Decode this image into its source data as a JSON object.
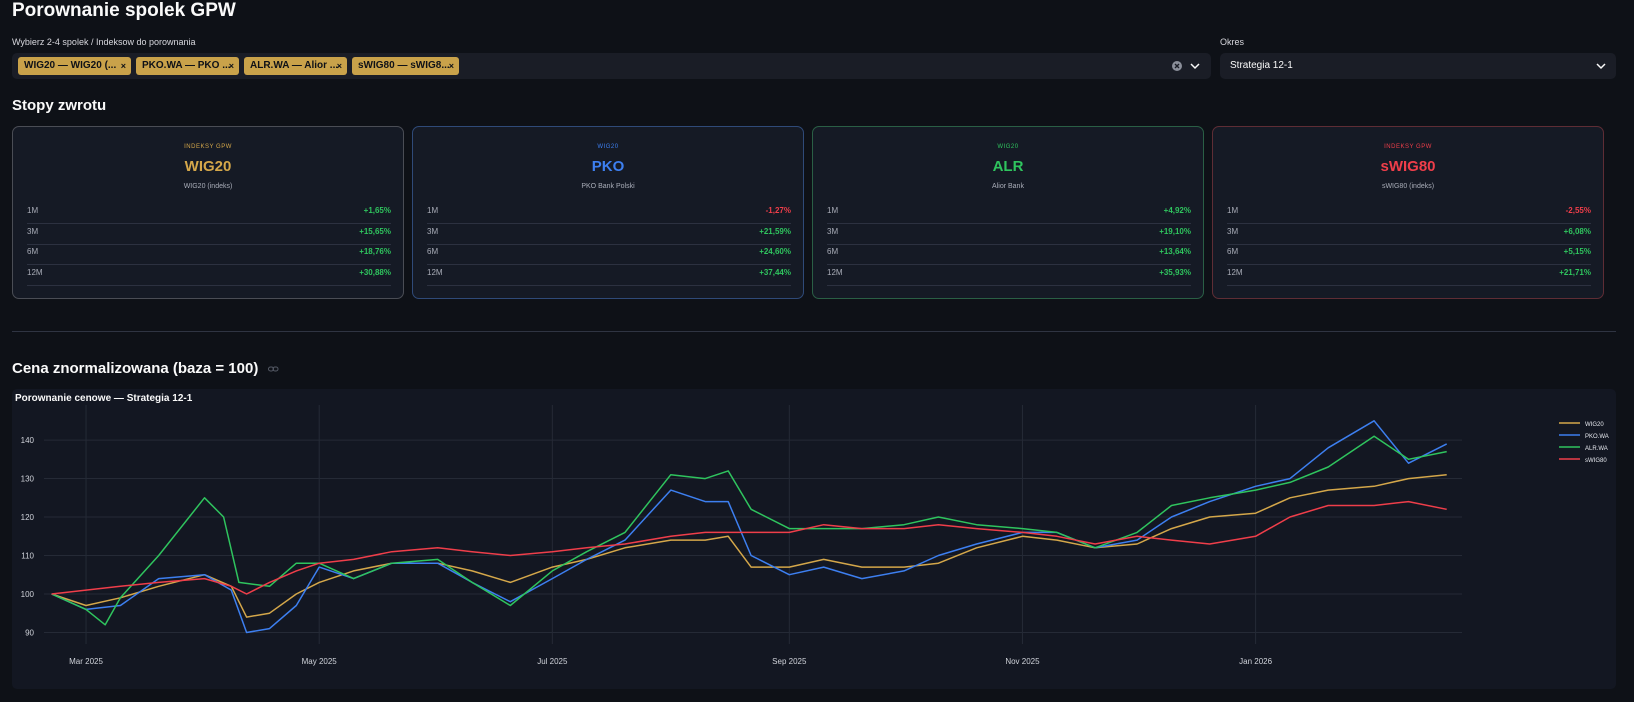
{
  "page": {
    "title": "Porownanie spolek GPW"
  },
  "selector": {
    "label": "Wybierz 2-4 spolek / Indeksow do porownania",
    "tags": [
      "WIG20 — WIG20 (...",
      "PKO.WA — PKO ...",
      "ALR.WA — Alior ...",
      "sWIG80 — sWIG8..."
    ],
    "tag_close": "×"
  },
  "period": {
    "label": "Okres",
    "value": "Strategia 12-1"
  },
  "returns": {
    "heading": "Stopy zwrotu",
    "cards": [
      {
        "group": "INDEKSY GPW",
        "ticker": "WIG20",
        "name": "WIG20 (indeks)",
        "color": "#d4a74a",
        "border": "#4a4d55",
        "rows": [
          {
            "p": "1M",
            "v": "+1,65%",
            "pos": true
          },
          {
            "p": "3M",
            "v": "+15,65%",
            "pos": true
          },
          {
            "p": "6M",
            "v": "+18,76%",
            "pos": true
          },
          {
            "p": "12M",
            "v": "+30,88%",
            "pos": true
          }
        ]
      },
      {
        "group": "WIG20",
        "ticker": "PKO",
        "name": "PKO Bank Polski",
        "color": "#3d7ff0",
        "border": "#2f4a78",
        "rows": [
          {
            "p": "1M",
            "v": "-1,27%",
            "pos": false
          },
          {
            "p": "3M",
            "v": "+21,59%",
            "pos": true
          },
          {
            "p": "6M",
            "v": "+24,60%",
            "pos": true
          },
          {
            "p": "12M",
            "v": "+37,44%",
            "pos": true
          }
        ]
      },
      {
        "group": "WIG20",
        "ticker": "ALR",
        "name": "Alior Bank",
        "color": "#2fc45e",
        "border": "#2a5f45",
        "rows": [
          {
            "p": "1M",
            "v": "+4,92%",
            "pos": true
          },
          {
            "p": "3M",
            "v": "+19,10%",
            "pos": true
          },
          {
            "p": "6M",
            "v": "+13,64%",
            "pos": true
          },
          {
            "p": "12M",
            "v": "+35,93%",
            "pos": true
          }
        ]
      },
      {
        "group": "INDEKSY GPW",
        "ticker": "sWIG80",
        "name": "sWIG80 (indeks)",
        "color": "#ef3e4a",
        "border": "#5e2d35",
        "rows": [
          {
            "p": "1M",
            "v": "-2,55%",
            "pos": false
          },
          {
            "p": "3M",
            "v": "+6,08%",
            "pos": true
          },
          {
            "p": "6M",
            "v": "+5,15%",
            "pos": true
          },
          {
            "p": "12M",
            "v": "+21,71%",
            "pos": true
          }
        ]
      }
    ],
    "pos_color": "#2fc45e",
    "neg_color": "#ef3e4a"
  },
  "chart_section": {
    "heading": "Cena znormalizowana (baza = 100)",
    "link_icon": "link-icon"
  },
  "chart_data": {
    "type": "line",
    "title": "Porownanie cenowe — Strategia 12-1",
    "xlabel": "",
    "ylabel": "",
    "ylim": [
      87,
      146
    ],
    "xlim": [
      "2025-02-18",
      "2026-02-24"
    ],
    "yticks": [
      90,
      100,
      110,
      120,
      130,
      140
    ],
    "xticks": [
      {
        "date": "2025-03-01",
        "label": "Mar 2025"
      },
      {
        "date": "2025-05-01",
        "label": "May 2025"
      },
      {
        "date": "2025-07-01",
        "label": "Jul 2025"
      },
      {
        "date": "2025-09-01",
        "label": "Sep 2025"
      },
      {
        "date": "2025-11-01",
        "label": "Nov 2025"
      },
      {
        "date": "2026-01-01",
        "label": "Jan 2026"
      }
    ],
    "grid": true,
    "legend_position": "top-right",
    "series": [
      {
        "name": "WIG20",
        "color": "#d4a74a",
        "points": [
          [
            "2025-02-20",
            100
          ],
          [
            "2025-03-01",
            97
          ],
          [
            "2025-03-10",
            99
          ],
          [
            "2025-03-20",
            102
          ],
          [
            "2025-04-01",
            105
          ],
          [
            "2025-04-08",
            102
          ],
          [
            "2025-04-12",
            94
          ],
          [
            "2025-04-18",
            95
          ],
          [
            "2025-04-25",
            100
          ],
          [
            "2025-05-01",
            103
          ],
          [
            "2025-05-10",
            106
          ],
          [
            "2025-05-20",
            108
          ],
          [
            "2025-06-01",
            108
          ],
          [
            "2025-06-10",
            106
          ],
          [
            "2025-06-20",
            103
          ],
          [
            "2025-07-01",
            107
          ],
          [
            "2025-07-10",
            109
          ],
          [
            "2025-07-20",
            112
          ],
          [
            "2025-08-01",
            114
          ],
          [
            "2025-08-10",
            114
          ],
          [
            "2025-08-16",
            115
          ],
          [
            "2025-08-22",
            107
          ],
          [
            "2025-09-01",
            107
          ],
          [
            "2025-09-10",
            109
          ],
          [
            "2025-09-20",
            107
          ],
          [
            "2025-10-01",
            107
          ],
          [
            "2025-10-10",
            108
          ],
          [
            "2025-10-20",
            112
          ],
          [
            "2025-11-01",
            115
          ],
          [
            "2025-11-10",
            114
          ],
          [
            "2025-11-20",
            112
          ],
          [
            "2025-12-01",
            113
          ],
          [
            "2025-12-10",
            117
          ],
          [
            "2025-12-20",
            120
          ],
          [
            "2026-01-01",
            121
          ],
          [
            "2026-01-10",
            125
          ],
          [
            "2026-01-20",
            127
          ],
          [
            "2026-02-01",
            128
          ],
          [
            "2026-02-10",
            130
          ],
          [
            "2026-02-20",
            131
          ]
        ]
      },
      {
        "name": "PKO.WA",
        "color": "#3d7ff0",
        "points": [
          [
            "2025-02-20",
            100
          ],
          [
            "2025-03-01",
            96
          ],
          [
            "2025-03-10",
            97
          ],
          [
            "2025-03-20",
            104
          ],
          [
            "2025-04-01",
            105
          ],
          [
            "2025-04-08",
            101
          ],
          [
            "2025-04-12",
            90
          ],
          [
            "2025-04-18",
            91
          ],
          [
            "2025-04-25",
            97
          ],
          [
            "2025-05-01",
            107
          ],
          [
            "2025-05-10",
            104
          ],
          [
            "2025-05-20",
            108
          ],
          [
            "2025-06-01",
            108
          ],
          [
            "2025-06-10",
            103
          ],
          [
            "2025-06-20",
            98
          ],
          [
            "2025-07-01",
            104
          ],
          [
            "2025-07-10",
            109
          ],
          [
            "2025-07-20",
            114
          ],
          [
            "2025-08-01",
            127
          ],
          [
            "2025-08-10",
            124
          ],
          [
            "2025-08-16",
            124
          ],
          [
            "2025-08-22",
            110
          ],
          [
            "2025-09-01",
            105
          ],
          [
            "2025-09-10",
            107
          ],
          [
            "2025-09-20",
            104
          ],
          [
            "2025-10-01",
            106
          ],
          [
            "2025-10-10",
            110
          ],
          [
            "2025-10-20",
            113
          ],
          [
            "2025-11-01",
            116
          ],
          [
            "2025-11-10",
            116
          ],
          [
            "2025-11-20",
            112
          ],
          [
            "2025-12-01",
            114
          ],
          [
            "2025-12-10",
            120
          ],
          [
            "2025-12-20",
            124
          ],
          [
            "2026-01-01",
            128
          ],
          [
            "2026-01-10",
            130
          ],
          [
            "2026-01-20",
            138
          ],
          [
            "2026-02-01",
            145
          ],
          [
            "2026-02-10",
            134
          ],
          [
            "2026-02-20",
            139
          ]
        ]
      },
      {
        "name": "ALR.WA",
        "color": "#2fc45e",
        "points": [
          [
            "2025-02-20",
            100
          ],
          [
            "2025-03-01",
            96
          ],
          [
            "2025-03-06",
            92
          ],
          [
            "2025-03-10",
            99
          ],
          [
            "2025-03-20",
            110
          ],
          [
            "2025-04-01",
            125
          ],
          [
            "2025-04-06",
            120
          ],
          [
            "2025-04-10",
            103
          ],
          [
            "2025-04-18",
            102
          ],
          [
            "2025-04-25",
            108
          ],
          [
            "2025-05-01",
            108
          ],
          [
            "2025-05-10",
            104
          ],
          [
            "2025-05-20",
            108
          ],
          [
            "2025-06-01",
            109
          ],
          [
            "2025-06-10",
            103
          ],
          [
            "2025-06-20",
            97
          ],
          [
            "2025-07-01",
            106
          ],
          [
            "2025-07-10",
            111
          ],
          [
            "2025-07-20",
            116
          ],
          [
            "2025-08-01",
            131
          ],
          [
            "2025-08-10",
            130
          ],
          [
            "2025-08-16",
            132
          ],
          [
            "2025-08-22",
            122
          ],
          [
            "2025-09-01",
            117
          ],
          [
            "2025-09-10",
            117
          ],
          [
            "2025-09-20",
            117
          ],
          [
            "2025-10-01",
            118
          ],
          [
            "2025-10-10",
            120
          ],
          [
            "2025-10-20",
            118
          ],
          [
            "2025-11-01",
            117
          ],
          [
            "2025-11-10",
            116
          ],
          [
            "2025-11-20",
            112
          ],
          [
            "2025-12-01",
            116
          ],
          [
            "2025-12-10",
            123
          ],
          [
            "2025-12-20",
            125
          ],
          [
            "2026-01-01",
            127
          ],
          [
            "2026-01-10",
            129
          ],
          [
            "2026-01-20",
            133
          ],
          [
            "2026-02-01",
            141
          ],
          [
            "2026-02-10",
            135
          ],
          [
            "2026-02-20",
            137
          ]
        ]
      },
      {
        "name": "sWIG80",
        "color": "#ef3e4a",
        "points": [
          [
            "2025-02-20",
            100
          ],
          [
            "2025-03-01",
            101
          ],
          [
            "2025-03-10",
            102
          ],
          [
            "2025-03-20",
            103
          ],
          [
            "2025-04-01",
            104
          ],
          [
            "2025-04-08",
            102
          ],
          [
            "2025-04-12",
            100
          ],
          [
            "2025-04-18",
            103
          ],
          [
            "2025-04-25",
            106
          ],
          [
            "2025-05-01",
            108
          ],
          [
            "2025-05-10",
            109
          ],
          [
            "2025-05-20",
            111
          ],
          [
            "2025-06-01",
            112
          ],
          [
            "2025-06-10",
            111
          ],
          [
            "2025-06-20",
            110
          ],
          [
            "2025-07-01",
            111
          ],
          [
            "2025-07-10",
            112
          ],
          [
            "2025-07-20",
            113
          ],
          [
            "2025-08-01",
            115
          ],
          [
            "2025-08-10",
            116
          ],
          [
            "2025-08-20",
            116
          ],
          [
            "2025-09-01",
            116
          ],
          [
            "2025-09-10",
            118
          ],
          [
            "2025-09-20",
            117
          ],
          [
            "2025-10-01",
            117
          ],
          [
            "2025-10-10",
            118
          ],
          [
            "2025-10-20",
            117
          ],
          [
            "2025-11-01",
            116
          ],
          [
            "2025-11-10",
            115
          ],
          [
            "2025-11-20",
            113
          ],
          [
            "2025-12-01",
            115
          ],
          [
            "2025-12-10",
            114
          ],
          [
            "2025-12-20",
            113
          ],
          [
            "2026-01-01",
            115
          ],
          [
            "2026-01-10",
            120
          ],
          [
            "2026-01-20",
            123
          ],
          [
            "2026-02-01",
            123
          ],
          [
            "2026-02-10",
            124
          ],
          [
            "2026-02-20",
            122
          ]
        ]
      }
    ]
  }
}
